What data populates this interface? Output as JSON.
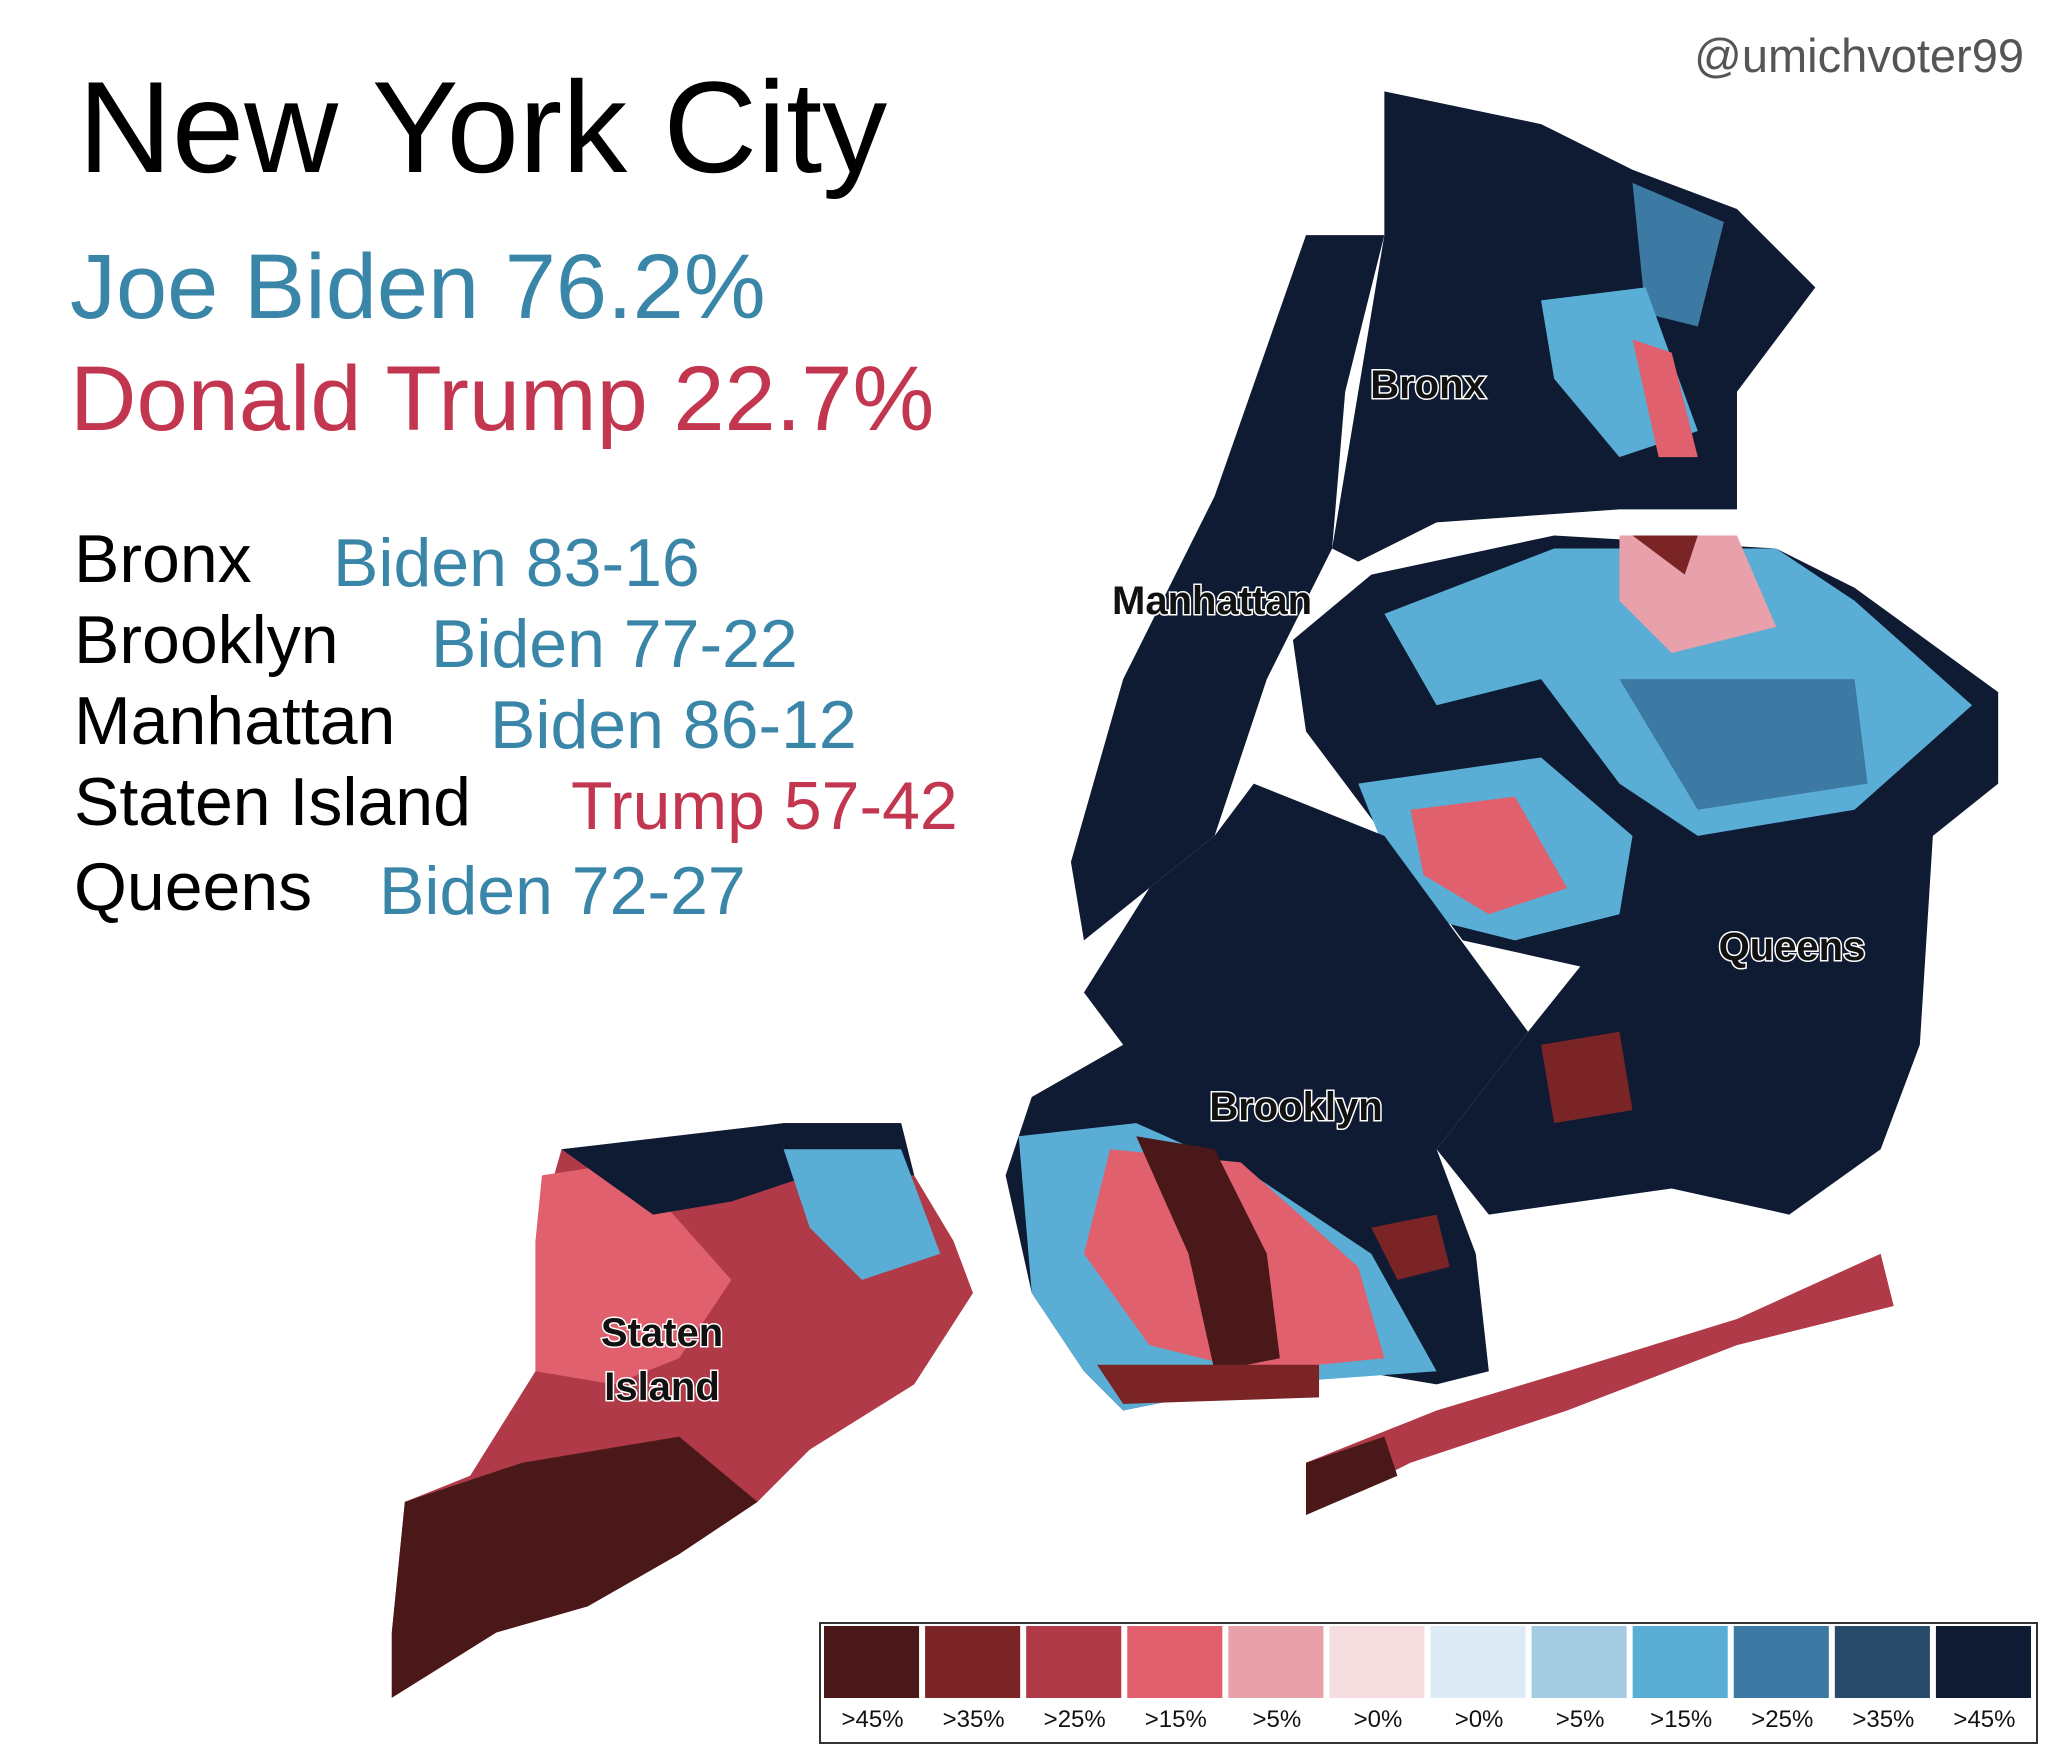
{
  "header": {
    "title": "New York City",
    "credit": "@umichvoter99"
  },
  "totals": [
    {
      "text": "Joe Biden 76.2%",
      "color": "#3a86a8"
    },
    {
      "text": "Donald Trump 22.7%",
      "color": "#c2364f"
    }
  ],
  "boroughs": [
    {
      "name": "Bronx",
      "result": "Biden 83-16",
      "color": "#3a86a8"
    },
    {
      "name": "Brooklyn",
      "result": "Biden 77-22",
      "color": "#3a86a8"
    },
    {
      "name": "Manhattan",
      "result": "Biden 86-12",
      "color": "#3a86a8"
    },
    {
      "name": "Staten Island",
      "result": "Trump 57-42",
      "color": "#c2364f"
    },
    {
      "name": "Queens",
      "result": "Biden 72-27",
      "color": "#3a86a8"
    }
  ],
  "map_labels": {
    "bronx": "Bronx",
    "manhattan": "Manhattan",
    "queens": "Queens",
    "brooklyn": "Brooklyn",
    "staten_island": [
      "Staten",
      "Island"
    ]
  },
  "legend": [
    {
      "label": ">45%",
      "color": "#4a1818"
    },
    {
      "label": ">35%",
      "color": "#7a2426"
    },
    {
      "label": ">25%",
      "color": "#b03a48"
    },
    {
      "label": ">15%",
      "color": "#e0606e"
    },
    {
      "label": ">5%",
      "color": "#e8a0aa"
    },
    {
      "label": ">0%",
      "color": "#f5dde0"
    },
    {
      "label": ">0%",
      "color": "#dcebf5"
    },
    {
      "label": ">5%",
      "color": "#a3cce3"
    },
    {
      "label": ">15%",
      "color": "#5aaed6"
    },
    {
      "label": ">25%",
      "color": "#3d7aa3"
    },
    {
      "label": ">35%",
      "color": "#284a6b"
    },
    {
      "label": ">45%",
      "color": "#0f1b33"
    }
  ]
}
